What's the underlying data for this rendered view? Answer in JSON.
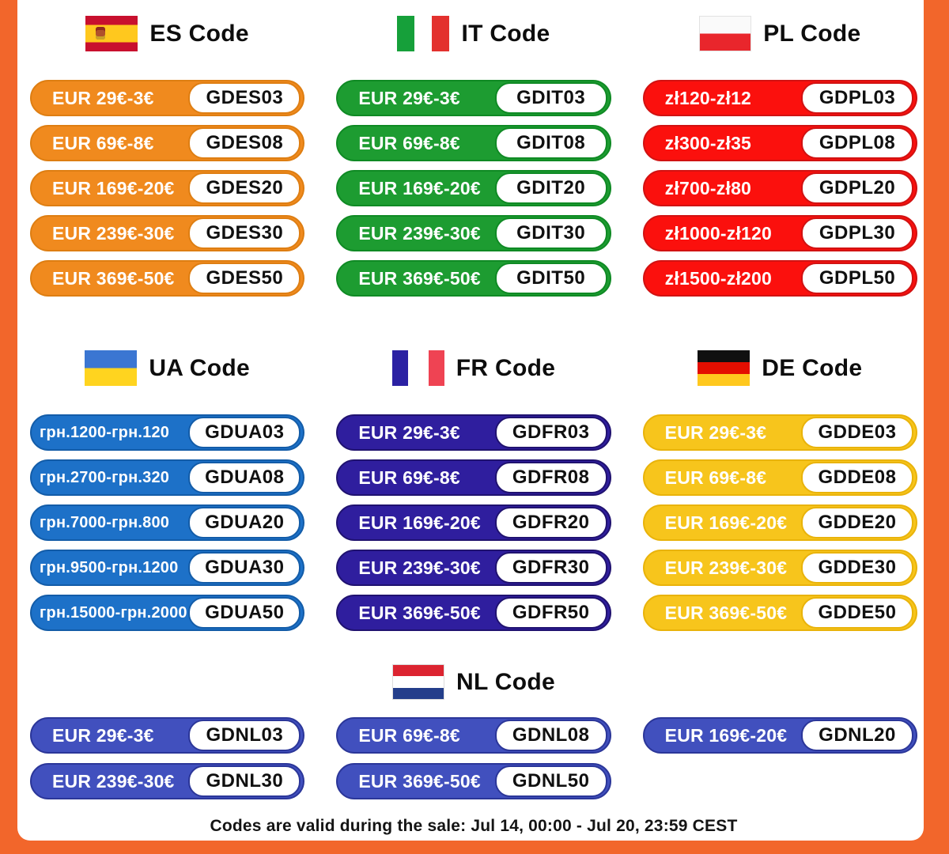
{
  "frame": {
    "color": "#F2662B",
    "background": "#FFFFFF"
  },
  "countries": [
    {
      "id": "es",
      "title": "ES Code",
      "flag": "spain-flag",
      "fill": "#F08A1E",
      "border": "#DE7E12",
      "pills": [
        {
          "value": "EUR 29€-3€",
          "code": "GDES03"
        },
        {
          "value": "EUR 69€-8€",
          "code": "GDES08"
        },
        {
          "value": "EUR 169€-20€",
          "code": "GDES20"
        },
        {
          "value": "EUR 239€-30€",
          "code": "GDES30"
        },
        {
          "value": "EUR 369€-50€",
          "code": "GDES50"
        }
      ]
    },
    {
      "id": "it",
      "title": "IT Code",
      "flag": "italy-flag",
      "fill": "#1D9C31",
      "border": "#0F8A24",
      "pills": [
        {
          "value": "EUR 29€-3€",
          "code": "GDIT03"
        },
        {
          "value": "EUR 69€-8€",
          "code": "GDIT08"
        },
        {
          "value": "EUR 169€-20€",
          "code": "GDIT20"
        },
        {
          "value": "EUR 239€-30€",
          "code": "GDIT30"
        },
        {
          "value": "EUR 369€-50€",
          "code": "GDIT50"
        }
      ]
    },
    {
      "id": "pl",
      "title": "PL Code",
      "flag": "poland-flag",
      "fill": "#FB100D",
      "border": "#D11212",
      "pills": [
        {
          "value": "zł120-zł12",
          "code": "GDPL03"
        },
        {
          "value": "zł300-zł35",
          "code": "GDPL08"
        },
        {
          "value": "zł700-zł80",
          "code": "GDPL20"
        },
        {
          "value": "zł1000-zł120",
          "code": "GDPL30"
        },
        {
          "value": "zł1500-zł200",
          "code": "GDPL50"
        }
      ]
    },
    {
      "id": "ua",
      "title": "UA Code",
      "flag": "ukraine-flag",
      "fill": "#1D71C8",
      "border": "#135CA8",
      "pills": [
        {
          "value": "грн.1200-грн.120",
          "code": "GDUA03"
        },
        {
          "value": "грн.2700-грн.320",
          "code": "GDUA08"
        },
        {
          "value": "грн.7000-грн.800",
          "code": "GDUA20"
        },
        {
          "value": "грн.9500-грн.1200",
          "code": "GDUA30"
        },
        {
          "value": "грн.15000-грн.2000",
          "code": "GDUA50"
        }
      ]
    },
    {
      "id": "fr",
      "title": "FR Code",
      "flag": "france-flag",
      "fill": "#2F1E9E",
      "border": "#201270",
      "pills": [
        {
          "value": "EUR 29€-3€",
          "code": "GDFR03"
        },
        {
          "value": "EUR 69€-8€",
          "code": "GDFR08"
        },
        {
          "value": "EUR 169€-20€",
          "code": "GDFR20"
        },
        {
          "value": "EUR 239€-30€",
          "code": "GDFR30"
        },
        {
          "value": "EUR 369€-50€",
          "code": "GDFR50"
        }
      ]
    },
    {
      "id": "de",
      "title": "DE Code",
      "flag": "germany-flag",
      "fill": "#F7C51C",
      "border": "#E9B30A",
      "pills": [
        {
          "value": "EUR 29€-3€",
          "code": "GDDE03"
        },
        {
          "value": "EUR 69€-8€",
          "code": "GDDE08"
        },
        {
          "value": "EUR 169€-20€",
          "code": "GDDE20"
        },
        {
          "value": "EUR 239€-30€",
          "code": "GDDE30"
        },
        {
          "value": "EUR 369€-50€",
          "code": "GDDE50"
        }
      ]
    }
  ],
  "nl": {
    "id": "nl",
    "title": "NL Code",
    "flag": "netherlands-flag",
    "fill": "#4150BE",
    "border": "#2B3699",
    "pills": [
      {
        "value": "EUR 29€-3€",
        "code": "GDNL03"
      },
      {
        "value": "EUR 69€-8€",
        "code": "GDNL08"
      },
      {
        "value": "EUR 169€-20€",
        "code": "GDNL20"
      },
      {
        "value": "EUR 239€-30€",
        "code": "GDNL30"
      },
      {
        "value": "EUR 369€-50€",
        "code": "GDNL50"
      }
    ]
  },
  "footer": {
    "note": "Codes are valid during the sale: Jul 14, 00:00 - Jul 20, 23:59 CEST"
  }
}
